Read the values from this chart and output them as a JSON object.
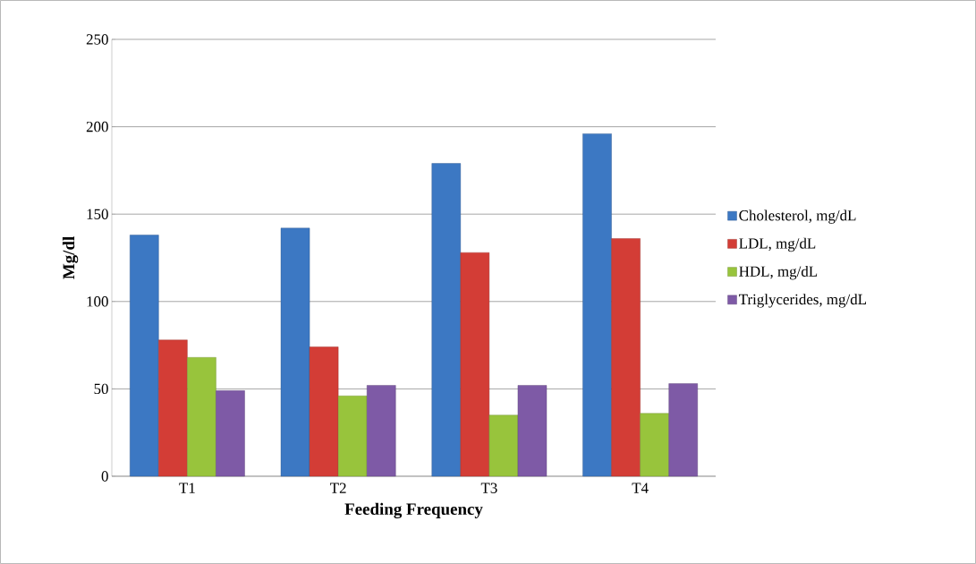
{
  "chart_data": {
    "type": "bar",
    "xlabel": "Feeding Frequency",
    "ylabel": "Mg/dl",
    "categories": [
      "T1",
      "T2",
      "T3",
      "T4"
    ],
    "series": [
      {
        "name": "Cholesterol, mg/dL",
        "color": "#3c78c3",
        "values": [
          138,
          142,
          179,
          196
        ]
      },
      {
        "name": "LDL, mg/dL",
        "color": "#d33d36",
        "values": [
          78,
          74,
          128,
          136
        ]
      },
      {
        "name": "HDL, mg/dL",
        "color": "#98c43c",
        "values": [
          68,
          46,
          35,
          36
        ]
      },
      {
        "name": "Triglycerides, mg/dL",
        "color": "#7e5aa6",
        "values": [
          49,
          52,
          52,
          53
        ]
      }
    ],
    "ylim": [
      0,
      250
    ],
    "yticks": [
      0,
      50,
      100,
      150,
      200,
      250
    ],
    "grid": "y",
    "legend": "right"
  }
}
